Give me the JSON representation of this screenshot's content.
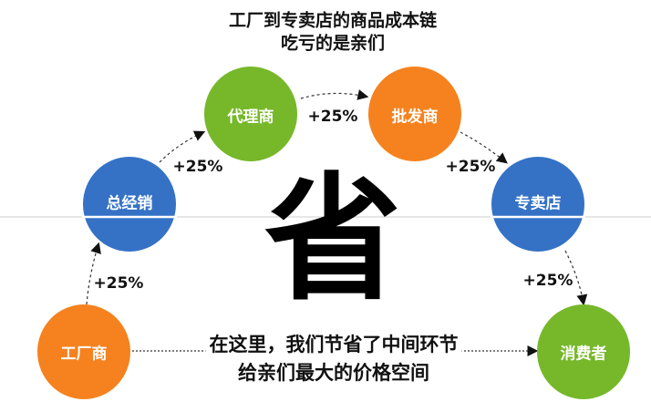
{
  "title": {
    "line1": "工厂到专卖店的商品成本链",
    "line2": "吃亏的是亲们"
  },
  "center_char": "省",
  "nodes": [
    {
      "label": "工厂商",
      "color": "#F5821F"
    },
    {
      "label": "总经销",
      "color": "#3572C6"
    },
    {
      "label": "代理商",
      "color": "#76B82A"
    },
    {
      "label": "批发商",
      "color": "#F5821F"
    },
    {
      "label": "专卖店",
      "color": "#3572C6"
    },
    {
      "label": "消费者",
      "color": "#76B82A"
    }
  ],
  "markups": [
    "+25%",
    "+25%",
    "+25%",
    "+25%",
    "+25%"
  ],
  "note": {
    "line1": "在这里，我们节省了中间环节",
    "line2": "给亲们最大的价格空间"
  }
}
